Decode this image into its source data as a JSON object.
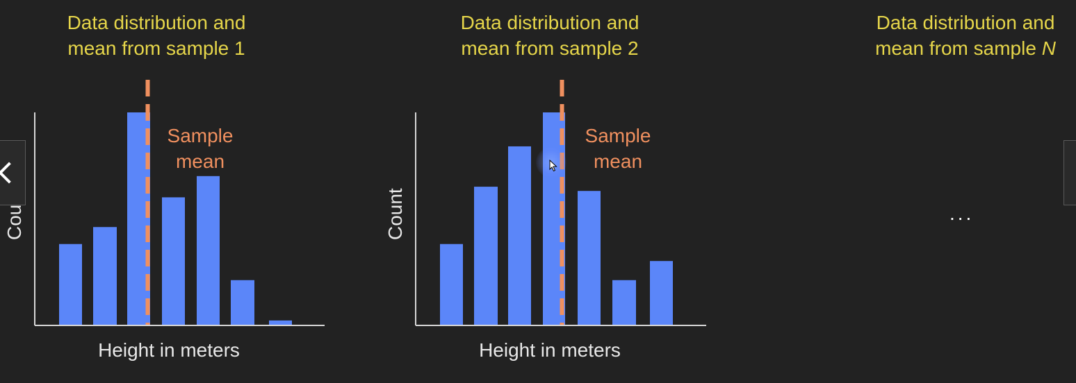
{
  "panels": [
    {
      "title_line1": "Data distribution and",
      "title_line2": "mean from sample 1",
      "title_variable": ""
    },
    {
      "title_line1": "Data distribution and",
      "title_line2": "mean from sample 2",
      "title_variable": ""
    },
    {
      "title_line1": "Data distribution and",
      "title_line2": "mean from sample ",
      "title_variable": "N"
    }
  ],
  "ellipsis": "...",
  "navigation": {
    "prev_icon": "chevron-left-icon",
    "next_icon": "chevron-right-icon"
  },
  "colors": {
    "background": "#222222",
    "title": "#e6d64a",
    "bar": "#5b86f9",
    "mean_line": "#f0905f",
    "axis": "#d8d8d8",
    "label": "#e8e8e8"
  },
  "chart_data": [
    {
      "type": "bar",
      "title": "Data distribution and mean from sample 1",
      "xlabel": "Height in meters",
      "ylabel": "Count",
      "ylabel_visible": "Cou",
      "categories": [
        "",
        "",
        "",
        "",
        "",
        "",
        ""
      ],
      "values": [
        38,
        46,
        100,
        60,
        70,
        21,
        2
      ],
      "ylim": [
        0,
        100
      ],
      "mean_category_position": 2.55,
      "annotation": [
        "Sample",
        "mean"
      ]
    },
    {
      "type": "bar",
      "title": "Data distribution and mean from sample 2",
      "xlabel": "Height in meters",
      "ylabel": "Count",
      "ylabel_visible": "Count",
      "categories": [
        "",
        "",
        "",
        "",
        "",
        "",
        ""
      ],
      "values": [
        38,
        65,
        84,
        100,
        63,
        21,
        30
      ],
      "ylim": [
        0,
        100
      ],
      "mean_category_position": 3.55,
      "annotation": [
        "Sample",
        "mean"
      ]
    }
  ]
}
